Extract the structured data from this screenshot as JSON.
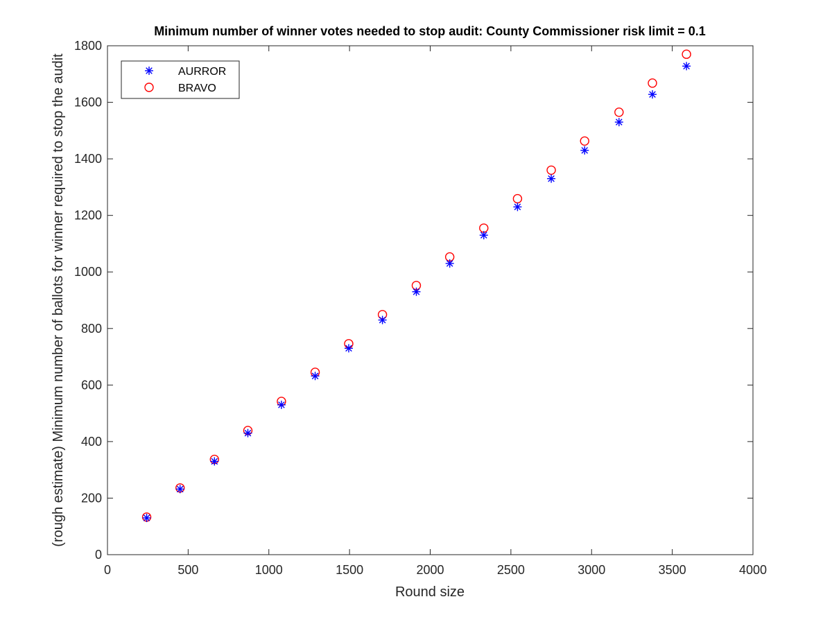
{
  "chart_data": {
    "type": "scatter",
    "title": "Minimum number of winner votes needed to stop audit: County Commissioner risk limit = 0.1",
    "xlabel": "Round size",
    "ylabel": "(rough estimate) Minimum number of ballots for winner required to stop the audit",
    "xlim": [
      0,
      4000
    ],
    "ylim": [
      0,
      1800
    ],
    "xticks": [
      0,
      500,
      1000,
      1500,
      2000,
      2500,
      3000,
      3500,
      4000
    ],
    "yticks": [
      0,
      200,
      400,
      600,
      800,
      1000,
      1200,
      1400,
      1600,
      1800
    ],
    "grid": false,
    "legend_position": "top-left",
    "x": [
      243,
      450,
      663,
      870,
      1078,
      1287,
      1495,
      1704,
      1914,
      2121,
      2332,
      2541,
      2750,
      2957,
      3170,
      3377,
      3588
    ],
    "series": [
      {
        "name": "AURROR",
        "marker": "asterisk",
        "color": "#0000ff",
        "values": [
          130,
          232,
          330,
          430,
          530,
          632,
          730,
          830,
          930,
          1030,
          1130,
          1230,
          1330,
          1430,
          1530,
          1628,
          1728
        ]
      },
      {
        "name": "BRAVO",
        "marker": "circle",
        "color": "#ff0000",
        "values": [
          133,
          236,
          337,
          439,
          542,
          645,
          746,
          849,
          952,
          1053,
          1155,
          1259,
          1360,
          1463,
          1565,
          1668,
          1770
        ]
      }
    ]
  }
}
